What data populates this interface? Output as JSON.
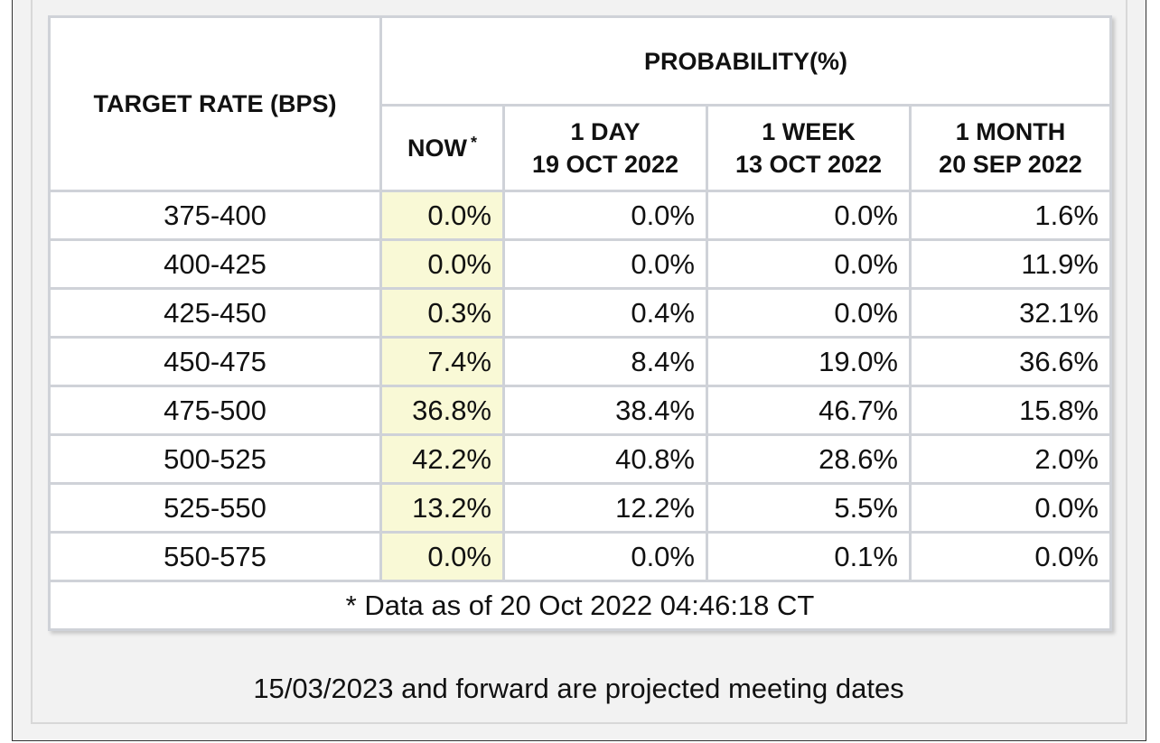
{
  "table": {
    "target_header": "TARGET RATE (BPS)",
    "probability_header": "PROBABILITY(%)",
    "columns": [
      {
        "line1": "NOW",
        "line2": "",
        "marker": "*"
      },
      {
        "line1": "1 DAY",
        "line2": "19 OCT 2022"
      },
      {
        "line1": "1 WEEK",
        "line2": "13 OCT 2022"
      },
      {
        "line1": "1 MONTH",
        "line2": "20 SEP 2022"
      }
    ],
    "rows": [
      {
        "rate": "375-400",
        "now": "0.0%",
        "day": "0.0%",
        "week": "0.0%",
        "month": "1.6%"
      },
      {
        "rate": "400-425",
        "now": "0.0%",
        "day": "0.0%",
        "week": "0.0%",
        "month": "11.9%"
      },
      {
        "rate": "425-450",
        "now": "0.3%",
        "day": "0.4%",
        "week": "0.0%",
        "month": "32.1%"
      },
      {
        "rate": "450-475",
        "now": "7.4%",
        "day": "8.4%",
        "week": "19.0%",
        "month": "36.6%"
      },
      {
        "rate": "475-500",
        "now": "36.8%",
        "day": "38.4%",
        "week": "46.7%",
        "month": "15.8%"
      },
      {
        "rate": "500-525",
        "now": "42.2%",
        "day": "40.8%",
        "week": "28.6%",
        "month": "2.0%"
      },
      {
        "rate": "525-550",
        "now": "13.2%",
        "day": "12.2%",
        "week": "5.5%",
        "month": "0.0%"
      },
      {
        "rate": "550-575",
        "now": "0.0%",
        "day": "0.0%",
        "week": "0.1%",
        "month": "0.0%"
      }
    ],
    "footnote": "* Data as of 20 Oct 2022 04:46:18 CT"
  },
  "caption": "15/03/2023 and forward are projected meeting dates",
  "colors": {
    "now_highlight": "#f9f9d6",
    "border": "#cfd2d8",
    "footnote_text": "#a8a8a8"
  }
}
